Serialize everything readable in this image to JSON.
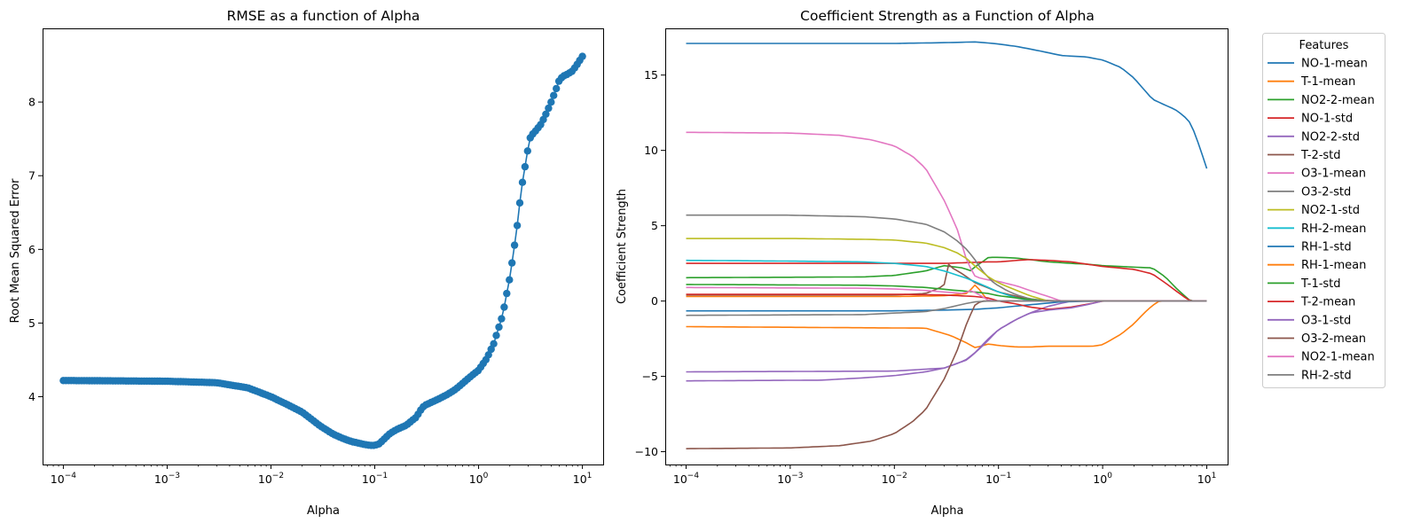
{
  "chart_data": [
    {
      "type": "line",
      "title": "RMSE as a function of Alpha",
      "xlabel": "Alpha",
      "ylabel": "Root Mean Squared Error",
      "xscale": "log",
      "xlim": [
        6.31e-05,
        15.85
      ],
      "ylim": [
        3.08,
        9.0
      ],
      "x_ticks": [
        0.0001,
        0.001,
        0.01,
        0.1,
        1,
        10
      ],
      "x_tick_labels": [
        "10",
        "10",
        "10",
        "10",
        "10",
        "10"
      ],
      "x_tick_exponents": [
        "−4",
        "−3",
        "−2",
        "−1",
        "0",
        "1"
      ],
      "y_ticks": [
        4,
        5,
        6,
        7,
        8
      ],
      "y_tick_labels": [
        "4",
        "5",
        "6",
        "7",
        "8"
      ],
      "markers": "circle",
      "color": "#1f77b4",
      "n_points": 200,
      "series": [
        {
          "x": [
            0.0001,
            0.001,
            0.003,
            0.006,
            0.01,
            0.015,
            0.02,
            0.03,
            0.04,
            0.05,
            0.06,
            0.07,
            0.08,
            0.09,
            0.1,
            0.11,
            0.12,
            0.14,
            0.16,
            0.2,
            0.25,
            0.28,
            0.3,
            0.4,
            0.5,
            0.6,
            0.7,
            0.8,
            0.9,
            1.0,
            1.2,
            1.4,
            1.7,
            2.0,
            2.3,
            2.6,
            2.9,
            3.1,
            3.3,
            3.5,
            4.0,
            4.5,
            5.0,
            5.5,
            6.0,
            6.5,
            7.0,
            8.0,
            9.0,
            10.0
          ],
          "y": [
            4.22,
            4.21,
            4.19,
            4.12,
            4.0,
            3.88,
            3.79,
            3.6,
            3.49,
            3.43,
            3.39,
            3.37,
            3.35,
            3.34,
            3.34,
            3.36,
            3.41,
            3.5,
            3.55,
            3.61,
            3.72,
            3.83,
            3.88,
            3.96,
            4.03,
            4.1,
            4.18,
            4.25,
            4.31,
            4.36,
            4.52,
            4.72,
            5.1,
            5.62,
            6.2,
            6.85,
            7.25,
            7.5,
            7.56,
            7.6,
            7.7,
            7.85,
            8.0,
            8.15,
            8.3,
            8.35,
            8.37,
            8.42,
            8.52,
            8.62
          ]
        }
      ]
    },
    {
      "type": "line",
      "title": "Coefficient Strength as a Function of Alpha",
      "xlabel": "Alpha",
      "ylabel": "Coefficient Strength",
      "xscale": "log",
      "xlim": [
        6.31e-05,
        15.85
      ],
      "ylim": [
        -10.85,
        18.1
      ],
      "x_ticks": [
        0.0001,
        0.001,
        0.01,
        0.1,
        1,
        10
      ],
      "x_tick_labels": [
        "10",
        "10",
        "10",
        "10",
        "10",
        "10"
      ],
      "x_tick_exponents": [
        "−4",
        "−3",
        "−2",
        "−1",
        "0",
        "1"
      ],
      "y_ticks": [
        -10,
        -5,
        0,
        5,
        10,
        15
      ],
      "y_tick_labels": [
        "−10",
        "−5",
        "0",
        "5",
        "10",
        "15"
      ],
      "legend_title": "Features",
      "legend_placement": "outside-right",
      "series": [
        {
          "name": "NO-1-mean",
          "color": "#1f77b4",
          "x": [
            0.0001,
            0.01,
            0.03,
            0.06,
            0.09,
            0.15,
            0.25,
            0.4,
            0.7,
            1.0,
            1.5,
            2.0,
            3.0,
            4.0,
            5.0,
            6.0,
            7.0,
            8.0,
            10.0
          ],
          "y": [
            17.1,
            17.1,
            17.15,
            17.2,
            17.1,
            16.9,
            16.6,
            16.3,
            16.2,
            16.0,
            15.5,
            14.8,
            13.4,
            13.0,
            12.7,
            12.3,
            11.8,
            10.8,
            8.8
          ]
        },
        {
          "name": "T-1-mean",
          "color": "#ff7f0e",
          "x": [
            0.0001,
            0.02,
            0.035,
            0.05,
            0.06,
            0.08,
            0.1,
            0.15,
            0.2,
            0.3,
            0.5,
            0.8,
            1.0,
            1.5,
            2.0,
            2.5,
            3.0,
            3.5,
            4.0,
            10.0
          ],
          "y": [
            -1.7,
            -1.8,
            -2.3,
            -2.8,
            -3.1,
            -2.85,
            -2.95,
            -3.05,
            -3.05,
            -3.0,
            -3.0,
            -3.0,
            -2.9,
            -2.2,
            -1.5,
            -0.8,
            -0.3,
            0.0,
            0.0,
            0.0
          ]
        },
        {
          "name": "NO2-2-mean",
          "color": "#2ca02c",
          "x": [
            0.0001,
            0.005,
            0.01,
            0.02,
            0.03,
            0.045,
            0.055,
            0.06,
            0.07,
            0.08,
            0.1,
            0.15,
            0.2,
            0.3,
            0.5,
            0.7,
            1.0,
            2.0,
            3.0,
            4.0,
            5.0,
            6.0,
            7.0,
            10.0
          ],
          "y": [
            1.55,
            1.6,
            1.7,
            2.0,
            2.35,
            2.2,
            2.0,
            2.3,
            2.6,
            2.9,
            2.9,
            2.85,
            2.75,
            2.6,
            2.5,
            2.45,
            2.35,
            2.25,
            2.2,
            1.6,
            0.9,
            0.4,
            0.0,
            0.0
          ]
        },
        {
          "name": "NO-1-std",
          "color": "#d62728",
          "x": [
            0.0001,
            0.01,
            0.03,
            0.05,
            0.08,
            0.1,
            0.15,
            0.2,
            0.3,
            0.5,
            0.7,
            1.0,
            2.0,
            3.0,
            4.0,
            5.0,
            6.0,
            7.0,
            10.0
          ],
          "y": [
            2.5,
            2.5,
            2.5,
            2.55,
            2.6,
            2.6,
            2.7,
            2.75,
            2.7,
            2.6,
            2.45,
            2.3,
            2.1,
            1.8,
            1.2,
            0.7,
            0.3,
            0.0,
            0.0
          ]
        },
        {
          "name": "NO2-2-std",
          "color": "#9467bd",
          "x": [
            0.0001,
            0.002,
            0.005,
            0.01,
            0.02,
            0.03,
            0.04,
            0.05,
            0.06,
            0.08,
            0.1,
            0.15,
            0.2,
            0.3,
            0.5,
            10.0
          ],
          "y": [
            -5.3,
            -5.25,
            -5.1,
            -4.95,
            -4.7,
            -4.45,
            -4.15,
            -3.85,
            -3.4,
            -2.5,
            -1.9,
            -1.2,
            -0.8,
            -0.35,
            0.0,
            0.0
          ]
        },
        {
          "name": "T-2-std",
          "color": "#8c564b",
          "x": [
            0.0001,
            0.01,
            0.02,
            0.03,
            0.032,
            0.035,
            0.045,
            0.06,
            0.1,
            0.2,
            0.4,
            10.0
          ],
          "y": [
            0.4,
            0.4,
            0.5,
            1.0,
            2.55,
            2.25,
            1.8,
            1.2,
            0.6,
            0.1,
            0.0,
            0.0
          ]
        },
        {
          "name": "O3-1-mean",
          "color": "#e377c2",
          "x": [
            0.0001,
            0.001,
            0.003,
            0.006,
            0.01,
            0.015,
            0.02,
            0.03,
            0.04,
            0.05,
            0.06,
            0.08,
            0.1,
            0.15,
            0.2,
            0.3,
            0.4,
            10.0
          ],
          "y": [
            11.2,
            11.15,
            11.0,
            10.7,
            10.3,
            9.6,
            8.8,
            6.7,
            4.8,
            2.6,
            1.6,
            1.4,
            1.3,
            1.0,
            0.7,
            0.3,
            0.0,
            0.0
          ]
        },
        {
          "name": "O3-2-std",
          "color": "#7f7f7f",
          "x": [
            0.0001,
            0.001,
            0.005,
            0.01,
            0.02,
            0.03,
            0.04,
            0.05,
            0.06,
            0.07,
            0.09,
            0.12,
            0.15,
            0.2,
            0.3,
            10.0
          ],
          "y": [
            5.7,
            5.7,
            5.6,
            5.45,
            5.1,
            4.6,
            4.0,
            3.4,
            2.7,
            2.0,
            1.2,
            0.7,
            0.4,
            0.15,
            0.0,
            0.0
          ]
        },
        {
          "name": "NO2-1-std",
          "color": "#bcbd22",
          "x": [
            0.0001,
            0.001,
            0.005,
            0.01,
            0.02,
            0.03,
            0.04,
            0.05,
            0.06,
            0.08,
            0.1,
            0.15,
            0.2,
            0.3,
            10.0
          ],
          "y": [
            4.15,
            4.15,
            4.1,
            4.05,
            3.85,
            3.55,
            3.2,
            2.8,
            2.3,
            1.6,
            1.2,
            0.7,
            0.35,
            0.0,
            0.0
          ]
        },
        {
          "name": "RH-2-mean",
          "color": "#17becf",
          "x": [
            0.0001,
            0.001,
            0.005,
            0.01,
            0.02,
            0.03,
            0.05,
            0.08,
            0.1,
            0.15,
            0.2,
            0.3,
            10.0
          ],
          "y": [
            2.7,
            2.65,
            2.6,
            2.5,
            2.3,
            2.0,
            1.5,
            0.9,
            0.6,
            0.2,
            0.05,
            0.0,
            0.0
          ]
        },
        {
          "name": "RH-1-std",
          "color": "#1f77b4",
          "x": [
            0.0001,
            0.01,
            0.03,
            0.06,
            0.1,
            0.2,
            0.4,
            1.0,
            10.0
          ],
          "y": [
            -0.65,
            -0.65,
            -0.6,
            -0.55,
            -0.45,
            -0.25,
            -0.05,
            0.0,
            0.0
          ]
        },
        {
          "name": "RH-1-mean",
          "color": "#ff7f0e",
          "x": [
            0.0001,
            0.01,
            0.03,
            0.05,
            0.06,
            0.07,
            0.08,
            0.1,
            0.2,
            10.0
          ],
          "y": [
            0.3,
            0.3,
            0.35,
            0.5,
            1.1,
            0.5,
            0.0,
            0.0,
            0.0,
            0.0
          ]
        },
        {
          "name": "T-1-std",
          "color": "#2ca02c",
          "x": [
            0.0001,
            0.005,
            0.01,
            0.02,
            0.04,
            0.06,
            0.08,
            0.1,
            0.15,
            0.2,
            0.3,
            10.0
          ],
          "y": [
            1.1,
            1.05,
            1.0,
            0.9,
            0.7,
            0.6,
            0.5,
            0.35,
            0.2,
            0.1,
            0.0,
            0.0
          ]
        },
        {
          "name": "T-2-mean",
          "color": "#d62728",
          "x": [
            0.0001,
            0.01,
            0.03,
            0.06,
            0.08,
            0.1,
            0.15,
            0.2,
            0.3,
            0.5,
            0.8,
            1.0,
            10.0
          ],
          "y": [
            0.45,
            0.45,
            0.4,
            0.3,
            0.2,
            0.0,
            -0.2,
            -0.4,
            -0.55,
            -0.4,
            -0.15,
            0.0,
            0.0
          ]
        },
        {
          "name": "O3-1-std",
          "color": "#9467bd",
          "x": [
            0.0001,
            0.01,
            0.03,
            0.05,
            0.07,
            0.1,
            0.15,
            0.2,
            0.3,
            0.5,
            0.7,
            1.0,
            10.0
          ],
          "y": [
            -4.7,
            -4.65,
            -4.45,
            -3.9,
            -3.0,
            -1.9,
            -1.2,
            -0.8,
            -0.6,
            -0.45,
            -0.25,
            0.0,
            0.0
          ]
        },
        {
          "name": "O3-2-mean",
          "color": "#8c564b",
          "x": [
            0.0001,
            0.001,
            0.003,
            0.006,
            0.01,
            0.015,
            0.02,
            0.03,
            0.04,
            0.05,
            0.06,
            0.07,
            0.1,
            10.0
          ],
          "y": [
            -9.8,
            -9.75,
            -9.6,
            -9.3,
            -8.8,
            -8.0,
            -7.2,
            -5.2,
            -3.3,
            -1.4,
            -0.2,
            0.0,
            0.0,
            0.0
          ]
        },
        {
          "name": "NO2-1-mean",
          "color": "#e377c2",
          "x": [
            0.0001,
            0.005,
            0.01,
            0.02,
            0.03,
            0.045,
            0.055,
            0.06,
            0.07,
            0.08,
            0.1,
            0.12,
            10.0
          ],
          "y": [
            0.9,
            0.85,
            0.8,
            0.7,
            0.6,
            0.5,
            0.7,
            0.55,
            0.3,
            0.05,
            0.0,
            0.0,
            0.0
          ]
        },
        {
          "name": "RH-2-std",
          "color": "#7f7f7f",
          "x": [
            0.0001,
            0.005,
            0.01,
            0.02,
            0.03,
            0.04,
            0.05,
            0.06,
            0.08,
            10.0
          ],
          "y": [
            -0.95,
            -0.9,
            -0.8,
            -0.7,
            -0.5,
            -0.3,
            -0.15,
            -0.05,
            0.0,
            0.0
          ]
        }
      ]
    }
  ]
}
